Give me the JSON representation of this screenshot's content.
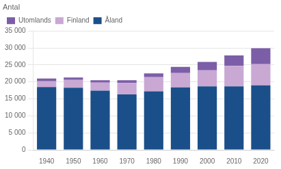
{
  "chart_data": {
    "type": "bar",
    "stacked": true,
    "ylabel": "Antal",
    "categories": [
      "1940",
      "1950",
      "1960",
      "1970",
      "1980",
      "1990",
      "2000",
      "2010",
      "2020"
    ],
    "series": [
      {
        "name": "Åland",
        "color": "#1A4F8A",
        "values": [
          18500,
          18300,
          17400,
          16300,
          17200,
          18400,
          18700,
          18700,
          19000
        ]
      },
      {
        "name": "Finland",
        "color": "#C9A8D4",
        "values": [
          1700,
          2300,
          2400,
          3400,
          4200,
          4200,
          4700,
          6000,
          6200
        ]
      },
      {
        "name": "Utomlands",
        "color": "#7B5EA7",
        "values": [
          800,
          700,
          700,
          800,
          1100,
          1800,
          2500,
          3100,
          4700
        ]
      }
    ],
    "ylim": [
      0,
      35000
    ],
    "yticks": [
      0,
      {
        "value": 5000,
        "label": "5 000"
      },
      {
        "value": 10000,
        "label": "10 000"
      },
      {
        "value": 15000,
        "label": "15 000"
      },
      {
        "value": 20000,
        "label": "20 000"
      },
      {
        "value": 25000,
        "label": "25 000"
      },
      {
        "value": 30000,
        "label": "30 000"
      },
      {
        "value": 35000,
        "label": "35 000"
      }
    ],
    "grid": true,
    "legend": "upper left"
  }
}
